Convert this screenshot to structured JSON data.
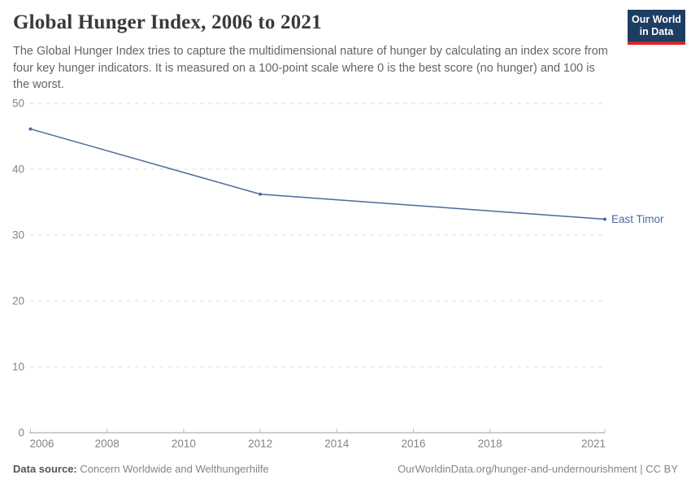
{
  "header": {
    "title": "Global Hunger Index, 2006 to 2021",
    "subtitle": "The Global Hunger Index tries to capture the multidimensional nature of hunger by calculating an index score from four key hunger indicators. It is measured on a 100-point scale where 0 is the best score (no hunger) and 100 is the worst.",
    "logo": {
      "line1": "Our World",
      "line2": "in Data",
      "bg_color": "#1d3d63",
      "accent_color": "#d8232a"
    }
  },
  "chart_data": {
    "type": "line",
    "title": "Global Hunger Index, 2006 to 2021",
    "xlabel": "",
    "ylabel": "",
    "xlim": [
      2006,
      2021
    ],
    "ylim": [
      0,
      50
    ],
    "x_ticks": [
      2006,
      2008,
      2010,
      2012,
      2014,
      2016,
      2018,
      2021
    ],
    "y_ticks": [
      0,
      10,
      20,
      30,
      40,
      50
    ],
    "grid": "horizontal-dashed",
    "legend_position": "end-of-line-label",
    "series": [
      {
        "name": "East Timor",
        "color": "#4c6a9c",
        "x": [
          2006,
          2012,
          2021
        ],
        "values": [
          46.1,
          36.2,
          32.4
        ]
      }
    ],
    "colors": {
      "gridline": "#dcdcdc",
      "axis": "#9e9e9e",
      "tick": "#bdbdbd",
      "tick_label": "#858585"
    }
  },
  "footer": {
    "datasource_label": "Data source:",
    "datasource_value": "Concern Worldwide and Welthungerhilfe",
    "link": "OurWorldinData.org/hunger-and-undernourishment",
    "separator": " | ",
    "license": "CC BY"
  }
}
